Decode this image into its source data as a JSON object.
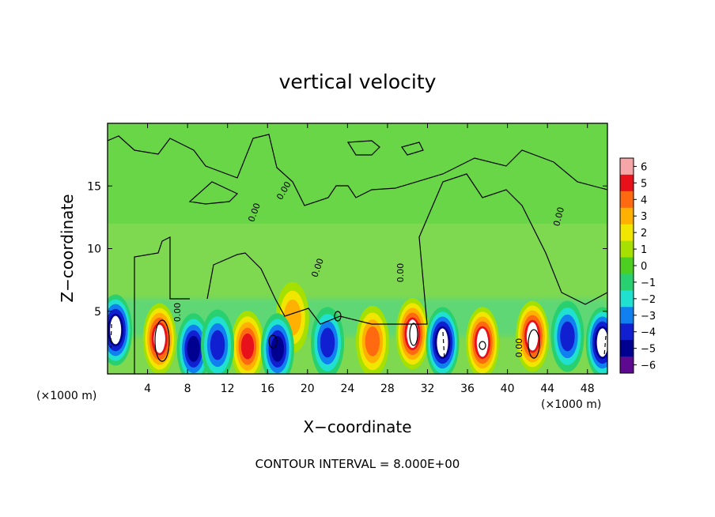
{
  "chart_data": {
    "type": "heatmap",
    "title": "vertical velocity",
    "xlabel": "X−coordinate",
    "ylabel": "Z−coordinate",
    "x_unit_left": "(×1000 m)",
    "x_unit_right": "(×1000 m)",
    "xlim": [
      0,
      50
    ],
    "ylim": [
      0,
      20
    ],
    "x_ticks": [
      4,
      8,
      12,
      16,
      20,
      24,
      28,
      32,
      36,
      40,
      44,
      48
    ],
    "y_ticks": [
      5,
      10,
      15
    ],
    "colorbar": {
      "min": -6,
      "max": 6,
      "ticks": [
        "6",
        "5",
        "4",
        "3",
        "2",
        "1",
        "0",
        "−1",
        "−2",
        "−3",
        "−4",
        "−5",
        "−6"
      ],
      "colors": [
        "#f6a6a6",
        "#e8101a",
        "#ff6a10",
        "#ffb000",
        "#f0e600",
        "#a6e000",
        "#4ccf20",
        "#28d070",
        "#20e0d0",
        "#1080f0",
        "#1020d0",
        "#000090",
        "#5e0a90"
      ]
    },
    "contour_label": "0.00",
    "updraft_cores": [
      {
        "x": 5.2,
        "z": 2.8,
        "peak": 6
      },
      {
        "x": 14.0,
        "z": 2.2,
        "peak": 5
      },
      {
        "x": 18.5,
        "z": 4.5,
        "peak": 3
      },
      {
        "x": 26.5,
        "z": 2.6,
        "peak": 4
      },
      {
        "x": 30.5,
        "z": 3.2,
        "peak": 6
      },
      {
        "x": 37.5,
        "z": 2.5,
        "peak": 6
      },
      {
        "x": 42.5,
        "z": 3.0,
        "peak": 6
      }
    ],
    "downdraft_cores": [
      {
        "x": 0.8,
        "z": 3.5,
        "peak": -6
      },
      {
        "x": 8.6,
        "z": 2.0,
        "peak": -5
      },
      {
        "x": 11.0,
        "z": 2.3,
        "peak": -4
      },
      {
        "x": 17.0,
        "z": 2.0,
        "peak": -5
      },
      {
        "x": 22.0,
        "z": 2.5,
        "peak": -4
      },
      {
        "x": 33.5,
        "z": 2.5,
        "peak": -6
      },
      {
        "x": 46.0,
        "z": 3.0,
        "peak": -4
      },
      {
        "x": 49.5,
        "z": 2.5,
        "peak": -6
      }
    ],
    "footer": "CONTOUR INTERVAL = 8.000E+00"
  }
}
